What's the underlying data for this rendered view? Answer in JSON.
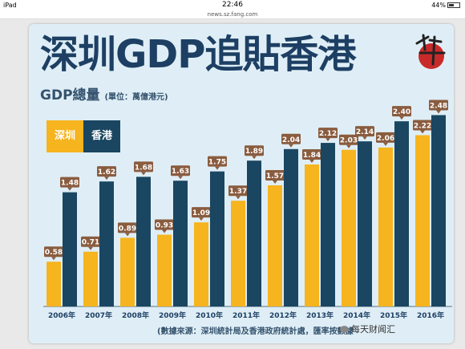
{
  "statusbar": {
    "device": "iPad",
    "wifi_icon": "wifi-icon",
    "time": "22:46",
    "battery": "44%",
    "url": "news.sz.fang.com"
  },
  "poster": {
    "title": "深圳GDP追貼香港",
    "seal_text": "主筆",
    "subtitle": "GDP總量",
    "unit": "(單位：萬億港元)",
    "footnote": "(數據來源：深圳統計局及香港政府統計處，匯率按數據",
    "watermark": "每天财闻汇"
  },
  "chart_data": {
    "type": "bar",
    "categories": [
      "2006年",
      "2007年",
      "2008年",
      "2009年",
      "2010年",
      "2011年",
      "2012年",
      "2013年",
      "2014年",
      "2015年",
      "2016年"
    ],
    "series": [
      {
        "name": "深圳",
        "color": "#f6b41e",
        "values": [
          0.58,
          0.71,
          0.89,
          0.93,
          1.09,
          1.37,
          1.57,
          1.84,
          2.03,
          2.06,
          2.22
        ],
        "labels": [
          "0.58",
          "0.71",
          "0.89",
          "0.93",
          "1.09",
          "1.37",
          "1.57",
          "1.84",
          "2.03",
          "2.06",
          "2.22"
        ]
      },
      {
        "name": "香港",
        "color": "#1a4661",
        "values": [
          1.48,
          1.62,
          1.68,
          1.63,
          1.75,
          1.89,
          2.04,
          2.12,
          2.14,
          2.4,
          2.48
        ],
        "labels": [
          "1.48",
          "1.62",
          "1.68",
          "1.63",
          "1.75",
          "1.89",
          "2.04",
          "2.12",
          "2.14",
          "2.40",
          "2.48"
        ]
      }
    ],
    "ylim": [
      0,
      2.62
    ],
    "label_color": "#8a5c3f",
    "legend_position": "top-left",
    "grid": false
  }
}
